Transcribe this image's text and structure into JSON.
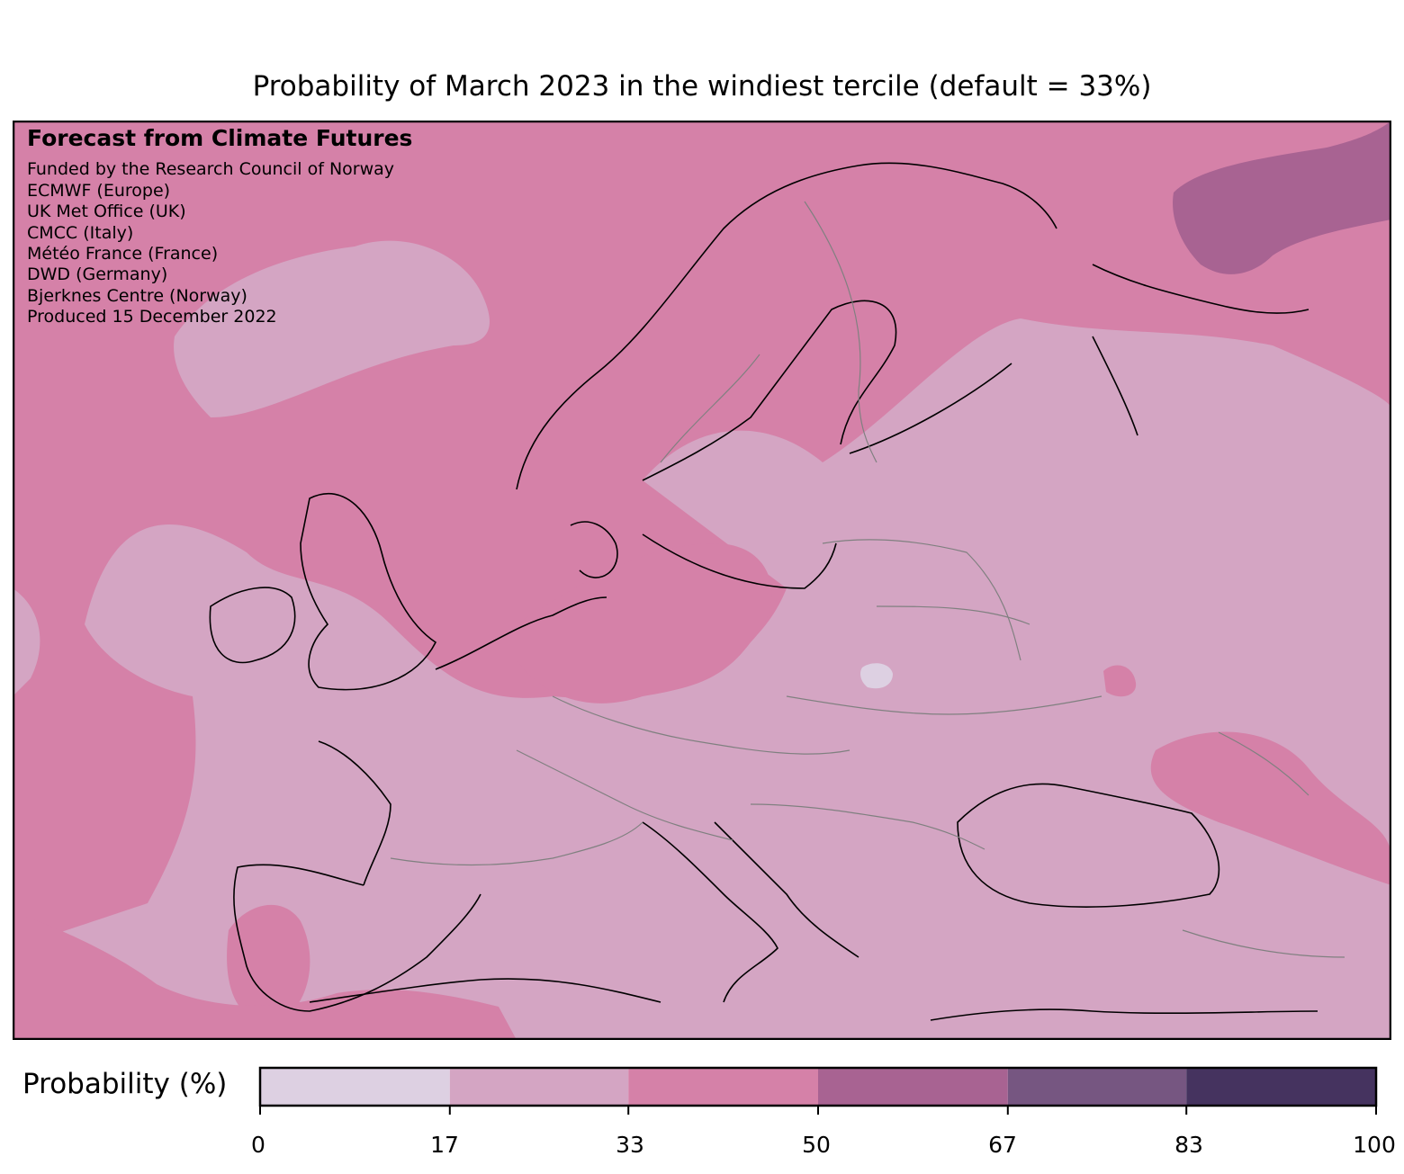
{
  "title": "Probability of March 2023 in the windiest tercile (default = 33%)",
  "credits": {
    "heading": "Forecast from Climate Futures",
    "lines": [
      "Funded by the Research Council of Norway",
      "ECMWF (Europe)",
      "UK Met Office (UK)",
      "CMCC (Italy)",
      "Météo France (France)",
      "DWD (Germany)",
      "Bjerknes Centre (Norway)",
      "Produced 15 December 2022"
    ]
  },
  "colorbar": {
    "label": "Probability (%)",
    "ticks": [
      "0",
      "17",
      "33",
      "50",
      "67",
      "83",
      "100"
    ],
    "bins": [
      {
        "from": 0,
        "to": 17,
        "color": "#ddd0e2"
      },
      {
        "from": 17,
        "to": 33,
        "color": "#d4a5c3"
      },
      {
        "from": 33,
        "to": 50,
        "color": "#d581a8"
      },
      {
        "from": 50,
        "to": 67,
        "color": "#a86392"
      },
      {
        "from": 67,
        "to": 83,
        "color": "#765681"
      },
      {
        "from": 83,
        "to": 100,
        "color": "#45335f"
      }
    ]
  },
  "map": {
    "region": "Europe",
    "features": [
      "coastlines",
      "country-borders"
    ]
  }
}
